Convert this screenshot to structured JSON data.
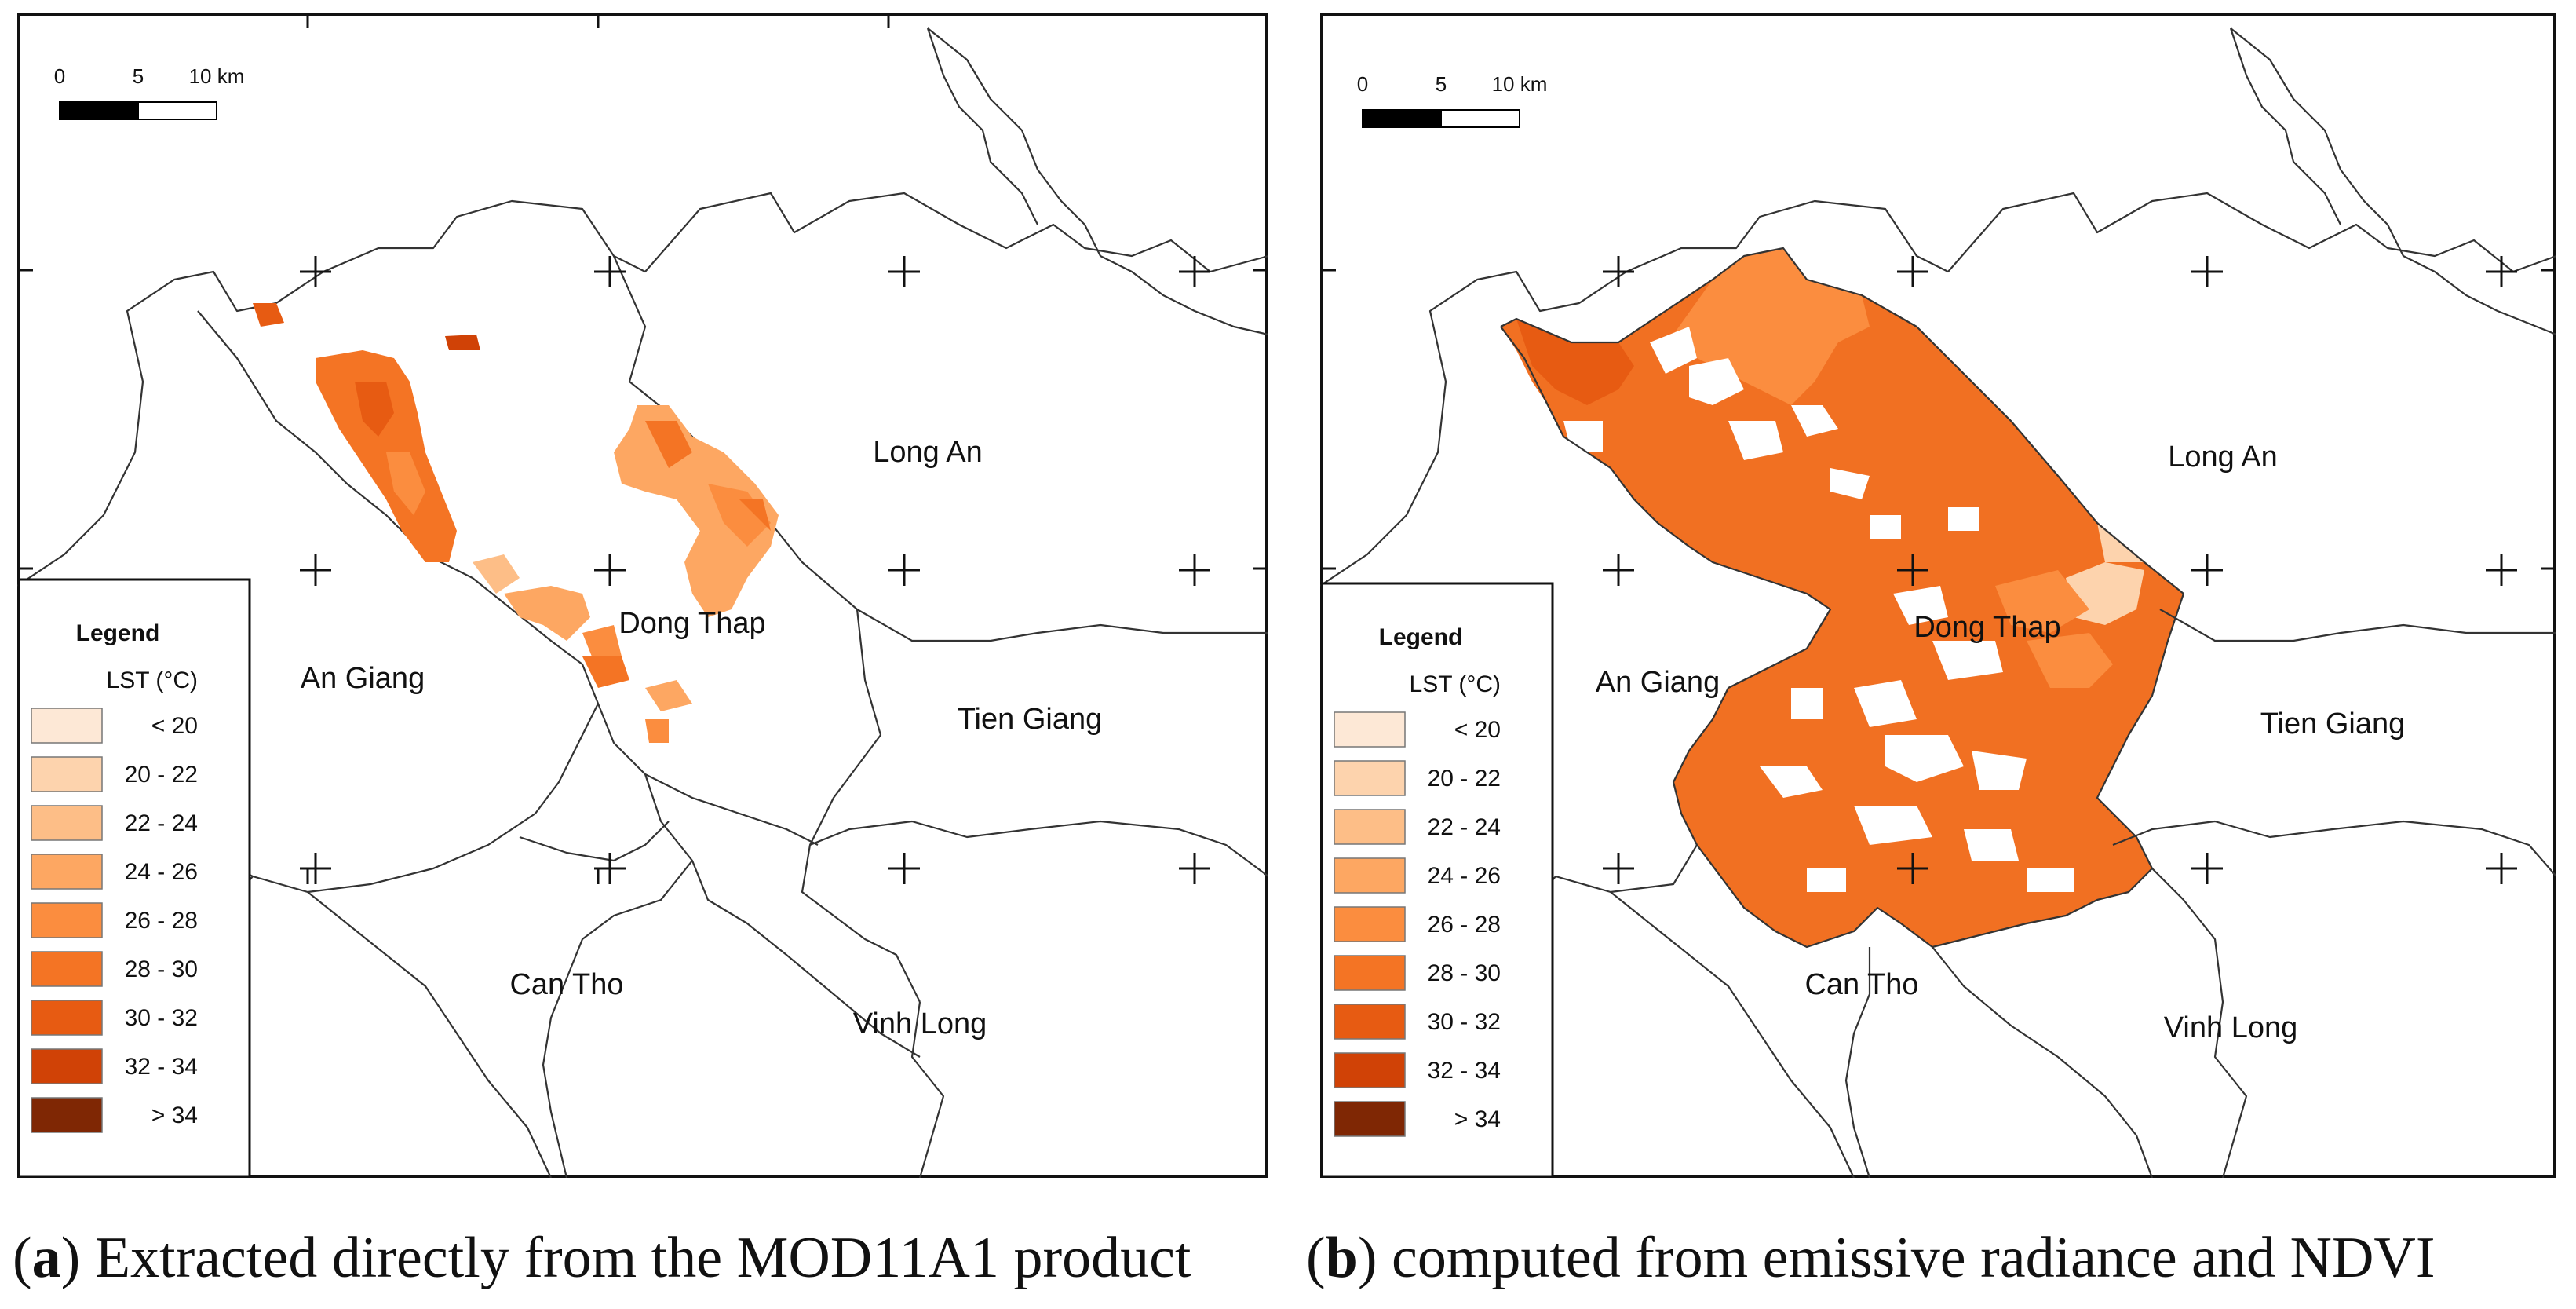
{
  "panels": [
    {
      "id": "a",
      "caption_letter": "a",
      "caption_text": "Extracted directly from the MOD11A1 product",
      "scale_bar": {
        "labels": [
          "0",
          "5",
          "10 km"
        ]
      },
      "provinces": [
        "Long An",
        "Dong Thap",
        "An Giang",
        "Tien Giang",
        "Can Tho",
        "Vinh Long"
      ],
      "legend": {
        "title": "Legend",
        "subtitle": "LST (°C)",
        "classes": [
          {
            "label": "< 20",
            "color": "#fde8d6"
          },
          {
            "label": "20 - 22",
            "color": "#fdd3ad"
          },
          {
            "label": "22 - 24",
            "color": "#fdbe87"
          },
          {
            "label": "24 - 26",
            "color": "#fda762"
          },
          {
            "label": "26 - 28",
            "color": "#fb8d3f"
          },
          {
            "label": "28 - 30",
            "color": "#f47424"
          },
          {
            "label": "30 - 32",
            "color": "#e75b12"
          },
          {
            "label": "32 - 34",
            "color": "#d04206"
          },
          {
            "label": "> 34",
            "color": "#7f2704"
          }
        ]
      }
    },
    {
      "id": "b",
      "caption_letter": "b",
      "caption_text": "computed from emissive radiance and NDVI",
      "scale_bar": {
        "labels": [
          "0",
          "5",
          "10 km"
        ]
      },
      "provinces": [
        "Long An",
        "Dong Thap",
        "An Giang",
        "Tien Giang",
        "Can Tho",
        "Vinh Long"
      ],
      "legend": {
        "title": "Legend",
        "subtitle": "LST (°C)",
        "classes": [
          {
            "label": "< 20",
            "color": "#fde8d6"
          },
          {
            "label": "20 - 22",
            "color": "#fdd3ad"
          },
          {
            "label": "22 - 24",
            "color": "#fdbe87"
          },
          {
            "label": "24 - 26",
            "color": "#fda762"
          },
          {
            "label": "26 - 28",
            "color": "#fb8d3f"
          },
          {
            "label": "28 - 30",
            "color": "#f47424"
          },
          {
            "label": "30 - 32",
            "color": "#e75b12"
          },
          {
            "label": "32 - 34",
            "color": "#d04206"
          },
          {
            "label": "> 34",
            "color": "#7f2704"
          }
        ]
      }
    }
  ]
}
